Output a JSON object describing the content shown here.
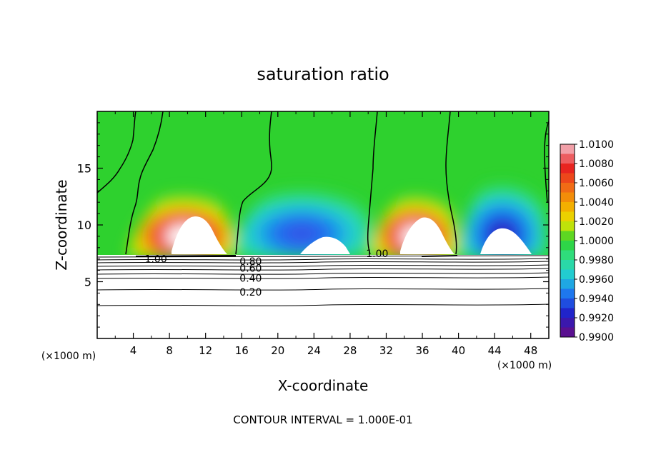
{
  "chart_data": {
    "type": "heatmap",
    "title": "saturation ratio",
    "xlabel": "X-coordinate",
    "ylabel": "Z-coordinate",
    "x_unit": "(×1000 m)",
    "footer": "CONTOUR INTERVAL = 1.000E-01",
    "xlim": [
      0,
      50
    ],
    "ylim": [
      0,
      20
    ],
    "xticks": [
      4,
      8,
      12,
      16,
      20,
      24,
      28,
      32,
      36,
      40,
      44,
      48
    ],
    "yticks": [
      5,
      10,
      15
    ],
    "colorbar": {
      "ticks": [
        "1.0100",
        "1.0080",
        "1.0060",
        "1.0040",
        "1.0020",
        "1.0000",
        "0.9980",
        "0.9960",
        "0.9940",
        "0.9920",
        "0.9900"
      ],
      "range": [
        0.99,
        1.01
      ],
      "colors": [
        "#f2a0a8",
        "#e82020",
        "#f06418",
        "#f5a500",
        "#e6e600",
        "#2ed12e",
        "#2fe090",
        "#20c8dc",
        "#1e6ef0",
        "#2020c8",
        "#5a1090"
      ]
    },
    "contour_labels": [
      {
        "text": "1.00",
        "x": 6.5,
        "z": 7.0
      },
      {
        "text": "0.80",
        "x": 17.0,
        "z": 6.8
      },
      {
        "text": "0.60",
        "x": 17.0,
        "z": 6.2
      },
      {
        "text": "0.40",
        "x": 17.0,
        "z": 5.3
      },
      {
        "text": "0.20",
        "x": 17.0,
        "z": 4.1
      },
      {
        "text": "1.00",
        "x": 31.0,
        "z": 7.5
      }
    ],
    "fields": {
      "background_value": 0.9995,
      "warm_plumes": [
        {
          "x": 11.0,
          "z": 10.5,
          "peak": 1.01
        },
        {
          "x": 34.5,
          "z": 10.5,
          "peak": 1.01
        }
      ],
      "dry_regions": [
        {
          "x": 24.0,
          "z": 9.0,
          "min": 0.994
        },
        {
          "x": 45.0,
          "z": 10.0,
          "min": 0.99
        }
      ]
    }
  }
}
